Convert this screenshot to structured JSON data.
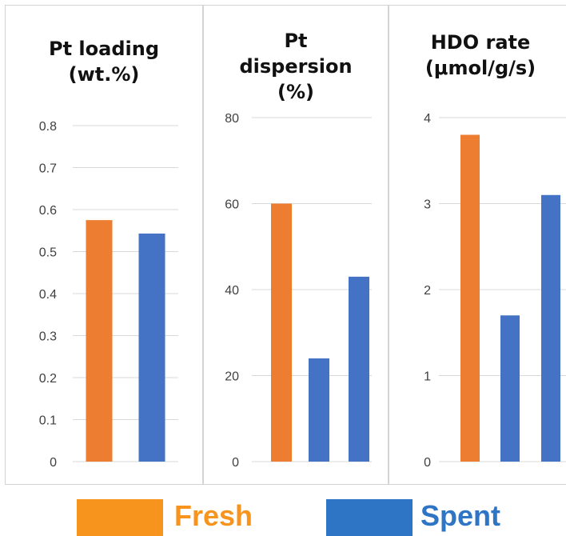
{
  "colors": {
    "fresh": "#ED7D31",
    "spent": "#4472C4",
    "fresh_legend": "#F7941D",
    "spent_legend": "#2E75C6"
  },
  "legend": {
    "fresh_label": "Fresh",
    "spent_label": "Spent"
  },
  "panels": [
    {
      "title_lines": [
        "Pt loading",
        "(wt.%)"
      ]
    },
    {
      "title_lines": [
        "Pt",
        "dispersion",
        "(%)"
      ]
    },
    {
      "title_lines": [
        "HDO rate",
        "(μmol/g/s)"
      ]
    }
  ],
  "chart_data": [
    {
      "type": "bar",
      "title": "Pt loading (wt.%)",
      "ylim": [
        0,
        0.8
      ],
      "yticks": [
        "0",
        "0.1",
        "0.2",
        "0.3",
        "0.4",
        "0.5",
        "0.6",
        "0.7",
        "0.8"
      ],
      "bars": [
        {
          "series": "Fresh",
          "value": 0.575
        },
        {
          "series": "Spent",
          "value": 0.543
        }
      ]
    },
    {
      "type": "bar",
      "title": "Pt dispersion (%)",
      "ylim": [
        0,
        80
      ],
      "yticks": [
        "0",
        "20",
        "40",
        "60",
        "80"
      ],
      "bars": [
        {
          "series": "Fresh",
          "value": 60
        },
        {
          "series": "Spent",
          "value": 24
        },
        {
          "series": "Spent",
          "value": 43
        }
      ]
    },
    {
      "type": "bar",
      "title": "HDO rate (μmol/g/s)",
      "ylim": [
        0,
        4
      ],
      "yticks": [
        "0",
        "1",
        "2",
        "3",
        "4"
      ],
      "bars": [
        {
          "series": "Fresh",
          "value": 3.8
        },
        {
          "series": "Spent",
          "value": 1.7
        },
        {
          "series": "Spent",
          "value": 3.1
        }
      ]
    }
  ]
}
